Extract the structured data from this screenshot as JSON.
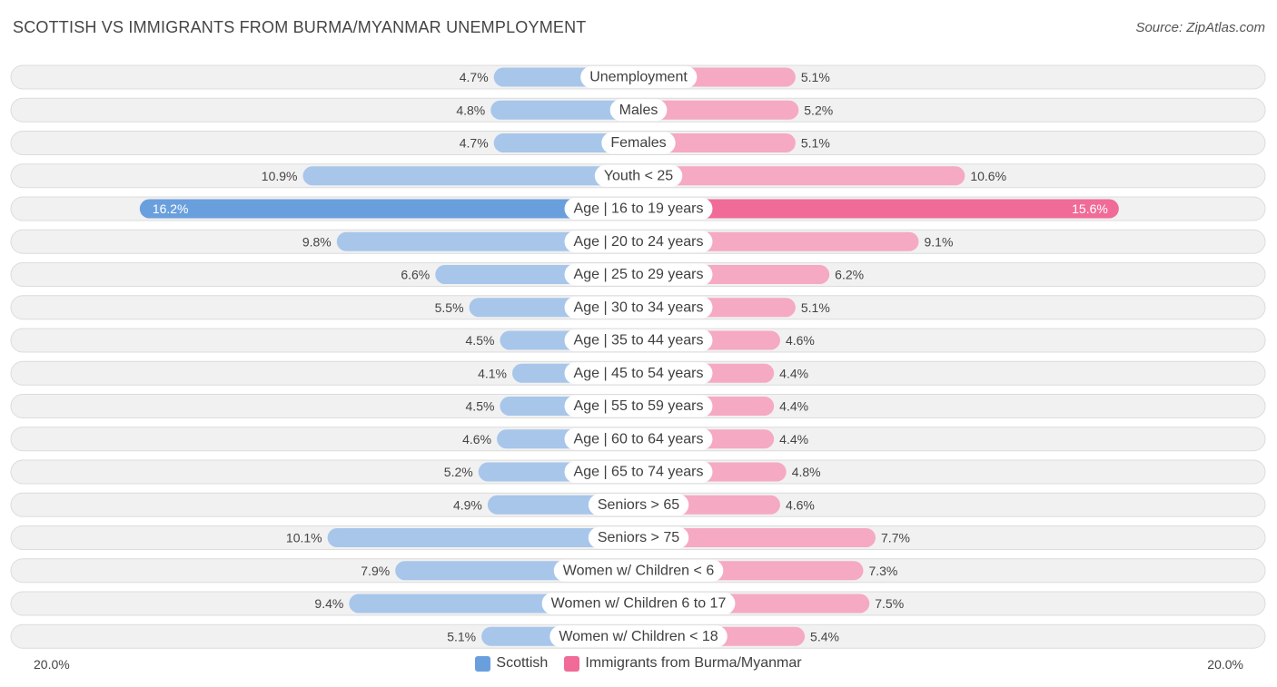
{
  "header": {
    "title": "SCOTTISH VS IMMIGRANTS FROM BURMA/MYANMAR UNEMPLOYMENT",
    "source": "Source: ZipAtlas.com"
  },
  "colors": {
    "left_light": "#a7c6ea",
    "left_strong": "#6a9fde",
    "right_light": "#f5a9c2",
    "right_strong": "#f06b97"
  },
  "chart_data": {
    "type": "bar",
    "orientation": "horizontal-diverging",
    "title": "SCOTTISH VS IMMIGRANTS FROM BURMA/MYANMAR UNEMPLOYMENT",
    "xlim": [
      -20,
      20
    ],
    "axis_left_label": "20.0%",
    "axis_right_label": "20.0%",
    "categories": [
      "Unemployment",
      "Males",
      "Females",
      "Youth < 25",
      "Age | 16 to 19 years",
      "Age | 20 to 24 years",
      "Age | 25 to 29 years",
      "Age | 30 to 34 years",
      "Age | 35 to 44 years",
      "Age | 45 to 54 years",
      "Age | 55 to 59 years",
      "Age | 60 to 64 years",
      "Age | 65 to 74 years",
      "Seniors > 65",
      "Seniors > 75",
      "Women w/ Children < 6",
      "Women w/ Children 6 to 17",
      "Women w/ Children < 18"
    ],
    "series": [
      {
        "name": "Scottish",
        "side": "left",
        "values": [
          4.7,
          4.8,
          4.7,
          10.9,
          16.2,
          9.8,
          6.6,
          5.5,
          4.5,
          4.1,
          4.5,
          4.6,
          5.2,
          4.9,
          10.1,
          7.9,
          9.4,
          5.1
        ],
        "labels": [
          "4.7%",
          "4.8%",
          "4.7%",
          "10.9%",
          "16.2%",
          "9.8%",
          "6.6%",
          "5.5%",
          "4.5%",
          "4.1%",
          "4.5%",
          "4.6%",
          "5.2%",
          "4.9%",
          "10.1%",
          "7.9%",
          "9.4%",
          "5.1%"
        ]
      },
      {
        "name": "Immigrants from Burma/Myanmar",
        "side": "right",
        "values": [
          5.1,
          5.2,
          5.1,
          10.6,
          15.6,
          9.1,
          6.2,
          5.1,
          4.6,
          4.4,
          4.4,
          4.4,
          4.8,
          4.6,
          7.7,
          7.3,
          7.5,
          5.4
        ],
        "labels": [
          "5.1%",
          "5.2%",
          "5.1%",
          "10.6%",
          "15.6%",
          "9.1%",
          "6.2%",
          "5.1%",
          "4.6%",
          "4.4%",
          "4.4%",
          "4.4%",
          "4.8%",
          "4.6%",
          "7.7%",
          "7.3%",
          "7.5%",
          "5.4%"
        ]
      }
    ],
    "legend": [
      "Scottish",
      "Immigrants from Burma/Myanmar"
    ]
  }
}
